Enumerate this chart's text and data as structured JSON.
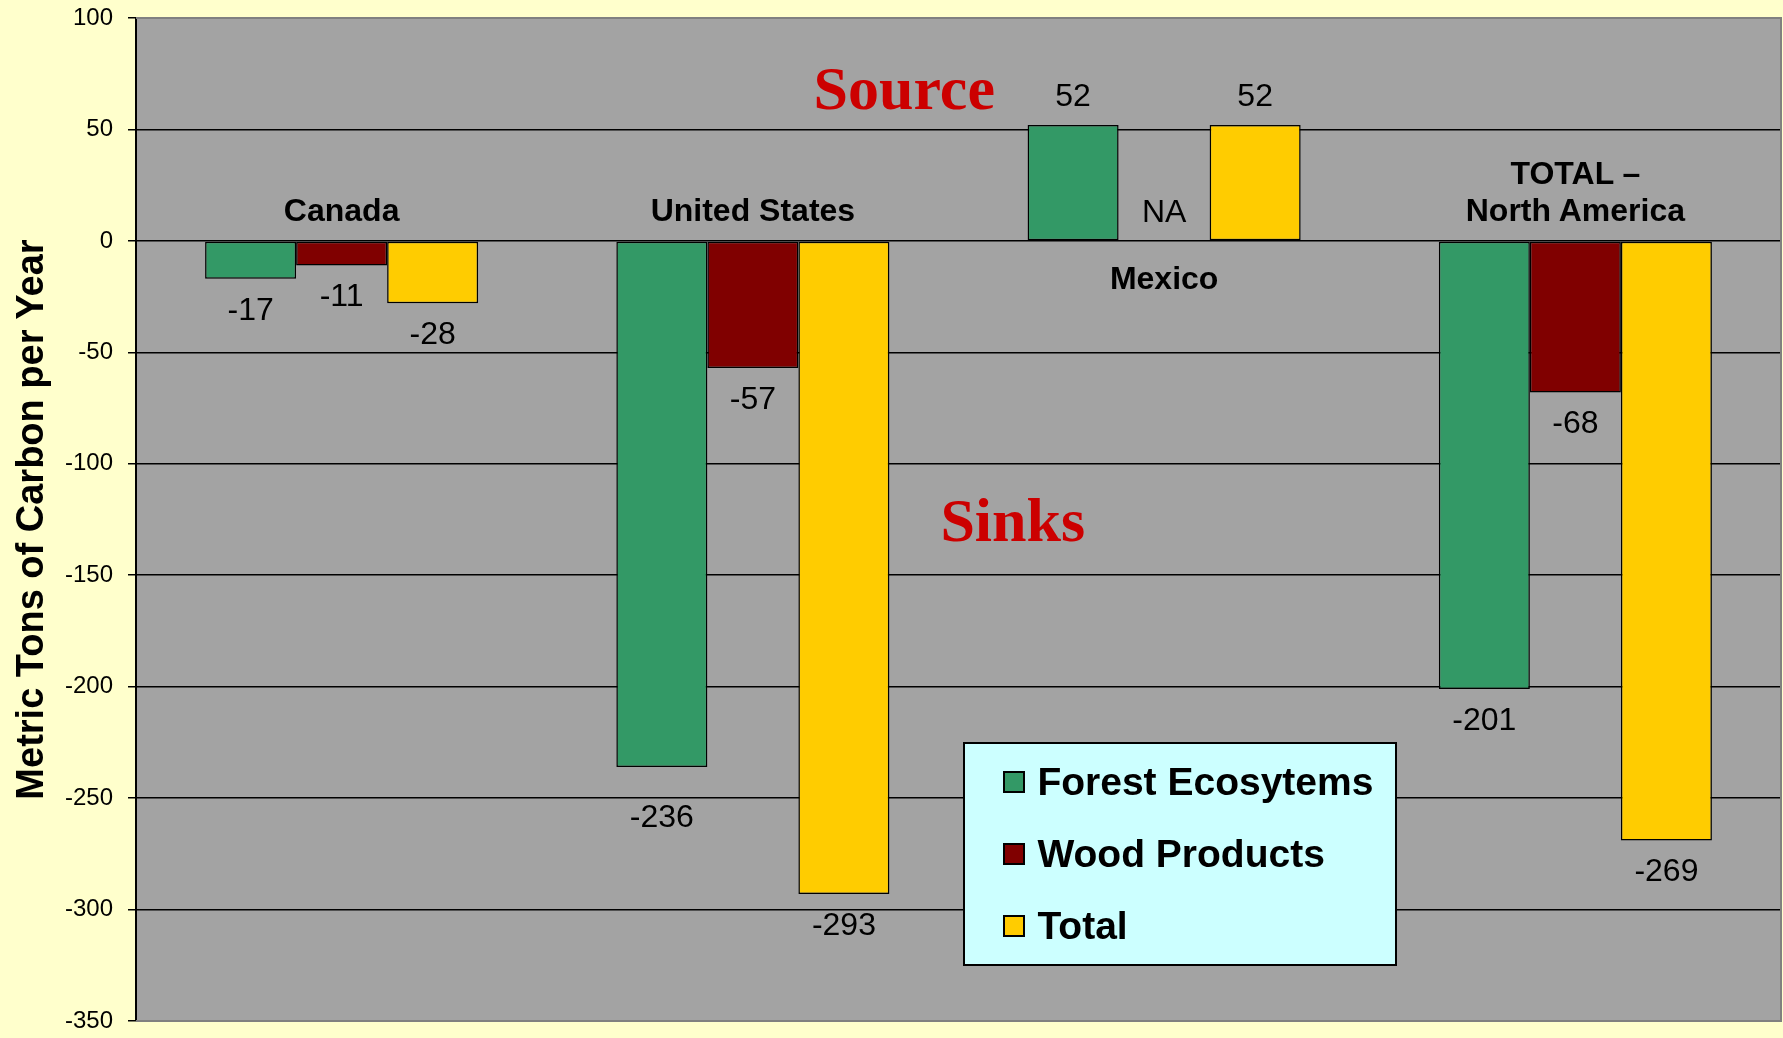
{
  "chart_data": {
    "type": "bar",
    "ylabel": "Metric Tons of Carbon per Year",
    "categories": [
      "Canada",
      "United States",
      "Mexico",
      "TOTAL – North America"
    ],
    "series": [
      {
        "name": "Forest Ecosytems",
        "color": "#339966",
        "values": [
          -17,
          -236,
          52,
          -201
        ],
        "value_labels": [
          "-17",
          "-236",
          "52",
          "-201"
        ]
      },
      {
        "name": "Wood Products",
        "color": "#800000",
        "values": [
          -11,
          -57,
          null,
          -68
        ],
        "value_labels": [
          "-11",
          "-57",
          "NA",
          "-68"
        ]
      },
      {
        "name": "Total",
        "color": "#ffcc00",
        "values": [
          -28,
          -293,
          52,
          -269
        ],
        "value_labels": [
          "-28",
          "-293",
          "52",
          "-269"
        ]
      }
    ],
    "ylim": [
      -350,
      100
    ],
    "yticks": [
      -350,
      -300,
      -250,
      -200,
      -150,
      -100,
      -50,
      0,
      50,
      100
    ],
    "grid": "y",
    "legend": "bottom",
    "annotations": [
      "Source",
      "Sinks"
    ]
  }
}
